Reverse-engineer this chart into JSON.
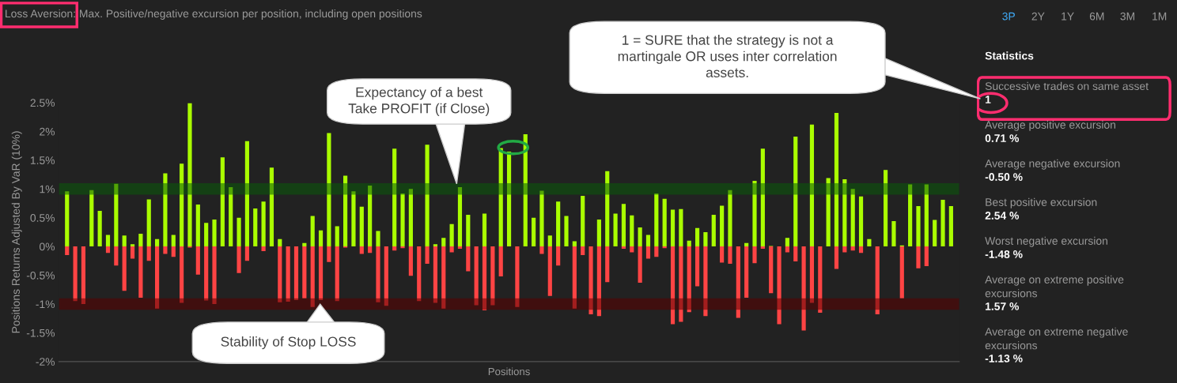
{
  "chart_data": [
    {
      "type": "bar",
      "title": "Loss Aversion: Max. Positive/negative excursion per position, including open positions",
      "xlabel": "Positions",
      "ylabel": "Positions Returns Adjusted By VaR (10%)",
      "categories": [
        null,
        null,
        null,
        null,
        null,
        null,
        null,
        null,
        null,
        null,
        null,
        null,
        null,
        null,
        null,
        null,
        null,
        null,
        null,
        null,
        null,
        null,
        null,
        null,
        null,
        null,
        null,
        null,
        null,
        null,
        null,
        null,
        null,
        null,
        null,
        null,
        null,
        null,
        null,
        null,
        null,
        null,
        null,
        null,
        null,
        null,
        null,
        null,
        null,
        null,
        null,
        null,
        null,
        null,
        null,
        null,
        null,
        null,
        null,
        null,
        null,
        null,
        null,
        null,
        null,
        null,
        null,
        null,
        null,
        null,
        null,
        null,
        null,
        null,
        null,
        null,
        null,
        null,
        null,
        null,
        null,
        null,
        null,
        null,
        null,
        null,
        null,
        null,
        null,
        null,
        null,
        null,
        null,
        null,
        null,
        null,
        null,
        null,
        null,
        null,
        null,
        null,
        null,
        null,
        null,
        null,
        null,
        null,
        null
      ],
      "series": [
        {
          "color": "#aaff00",
          "values": [
            0.96,
            null,
            null,
            0.98,
            0.62,
            0.2,
            1.09,
            0.19,
            0.04,
            0.22,
            0.82,
            0.13,
            1.27,
            0.2,
            1.44,
            2.49,
            0.73,
            0.41,
            0.47,
            1.55,
            1.03,
            0.5,
            1.83,
            0.66,
            0.78,
            1.37,
            0.13,
            null,
            null,
            0.06,
            0.53,
            0.28,
            1.97,
            0.35,
            1.23,
            0.96,
            0.69,
            1.06,
            0.27,
            null,
            1.7,
            0.92,
            1.0,
            null,
            1.77,
            0.04,
            0.15,
            0.39,
            1.03,
            0.55,
            null,
            0.57,
            null,
            1.71,
            1.65,
            null,
            1.95,
            0.5,
            0.97,
            0.19,
            0.78,
            0.53,
            0.09,
            0.88,
            null,
            0.47,
            1.31,
            0.57,
            0.74,
            0.54,
            0.33,
            0.2,
            0.92,
            0.83,
            0.64,
            0.65,
            0.1,
            0.32,
            0.25,
            0.55,
            0.71,
            0.98,
            null,
            0.06,
            1.14,
            1.7,
            0.01,
            null,
            0.15,
            1.91,
            null,
            2.12,
            null,
            1.19,
            2.32,
            1.17,
            1.0,
            0.87,
            0.13,
            null,
            1.33,
            0.44,
            0.02,
            1.08,
            0.7,
            1.08,
            0.46,
            0.81,
            0.7
          ]
        },
        {
          "color": "#ff4444",
          "values": [
            -0.15,
            -0.95,
            -1.0,
            null,
            null,
            -0.11,
            -0.33,
            -0.77,
            -0.21,
            -0.89,
            -0.25,
            -1.08,
            -0.13,
            -0.18,
            -0.98,
            -0.02,
            -0.49,
            -0.94,
            -1.0,
            null,
            null,
            -0.46,
            -0.25,
            null,
            -0.08,
            null,
            -0.97,
            -0.96,
            -0.93,
            -0.9,
            -1.05,
            -0.93,
            -0.27,
            -0.95,
            -0.02,
            null,
            -0.13,
            -0.11,
            -0.97,
            -1.03,
            -0.07,
            -0.03,
            -0.51,
            -0.95,
            -0.3,
            -0.98,
            -1.08,
            -0.1,
            -0.04,
            -0.43,
            -1.02,
            -1.11,
            -1.02,
            -0.52,
            null,
            -1.05,
            null,
            null,
            -0.13,
            -0.86,
            -0.33,
            null,
            -1.08,
            -0.15,
            -1.18,
            -1.21,
            -0.62,
            null,
            -0.04,
            -0.1,
            -0.63,
            -0.21,
            -0.18,
            -0.03,
            -1.35,
            -1.31,
            -1.14,
            -0.69,
            -1.21,
            null,
            -0.28,
            -0.3,
            -1.24,
            -0.89,
            -0.29,
            -0.04,
            -0.81,
            -1.35,
            -0.1,
            -0.26,
            -1.46,
            -0.98,
            -1.15,
            null,
            -0.39,
            -0.1,
            -0.07,
            -0.11,
            null,
            -1.18,
            null,
            null,
            -0.9,
            null,
            -0.38,
            -0.34,
            null,
            null,
            null
          ]
        }
      ],
      "stacked": true,
      "ylim": [
        -2,
        2.5
      ],
      "yticks": [
        {
          "value": -2,
          "label": "-2%"
        },
        {
          "value": -1.5,
          "label": "-1.5%"
        },
        {
          "value": -1,
          "label": "-1%"
        },
        {
          "value": -0.5,
          "label": "-0.5%"
        },
        {
          "value": 0,
          "label": "0%"
        },
        {
          "value": 0.5,
          "label": "0.5%"
        },
        {
          "value": 1,
          "label": "1%"
        },
        {
          "value": 1.5,
          "label": "1.5%"
        },
        {
          "value": 2,
          "label": "2%"
        },
        {
          "value": 2.5,
          "label": "2.5%"
        }
      ],
      "bands": [
        {
          "axis": "y",
          "from": 0.9,
          "to": 1.1,
          "color": "#0a5a0a"
        },
        {
          "axis": "y",
          "from": -1.1,
          "to": -0.9,
          "color": "#5a0000"
        }
      ],
      "annotations": [
        "3P",
        "2Y",
        "1Y",
        "6M",
        "3M",
        "1M",
        "Expectancy of a best\nTake PROFIT (if Close)",
        "Stability of Stop LOSS",
        "1 = SURE that the strategy is not a\nmartingale OR uses inter correlation\nassets."
      ]
    },
    {
      "type": "other",
      "title": "Statistics",
      "annotations": [
        "Successive trades on same asset",
        "1",
        "Average positive excursion",
        "0.71 %",
        "Average negative excursion",
        "-0.50 %",
        "Best positive excursion",
        "2.54 %",
        "Worst negative excursion",
        "-1.48 %",
        "Average on extreme positive\nexcursions",
        "1.57 %",
        "Average on extreme negative\nexcursions",
        "-1.13 %"
      ]
    }
  ]
}
